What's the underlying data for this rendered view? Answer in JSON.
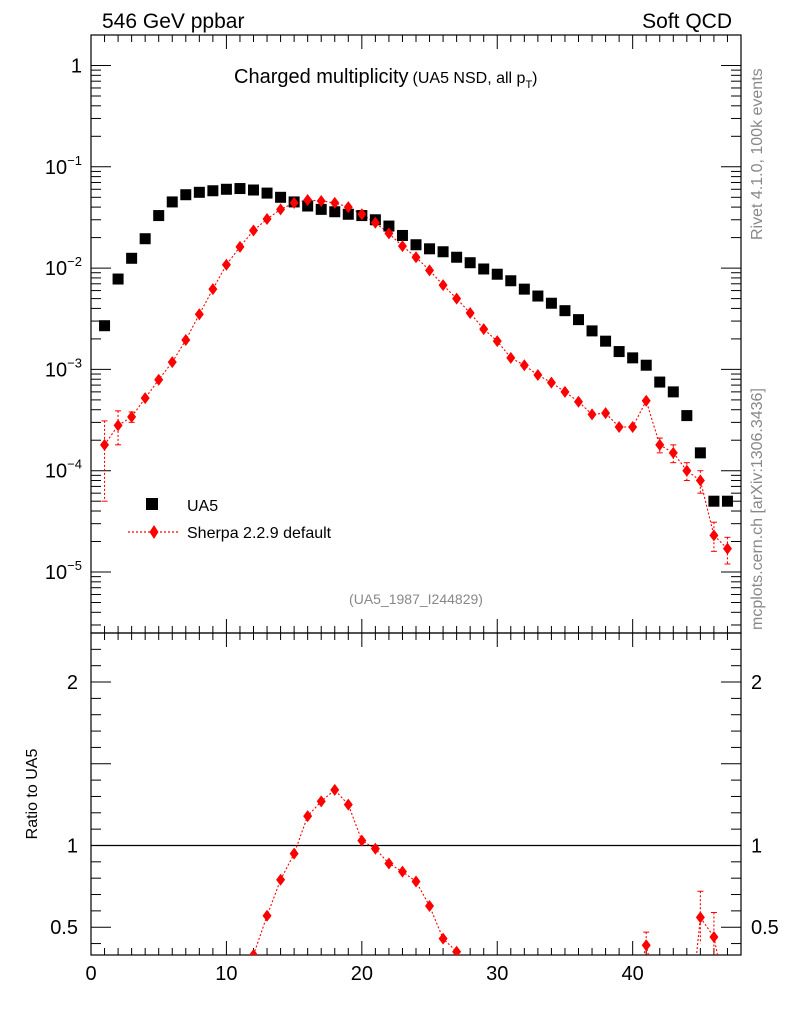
{
  "header": {
    "left": "546 GeV ppbar",
    "right": "Soft QCD"
  },
  "side": {
    "rivet": "Rivet 4.1.0,  100k events",
    "mcplots": "mcplots.cern.ch [arXiv:1306.3436]"
  },
  "chart_data": {
    "type": "scatter",
    "title": "Charged multiplicity",
    "title_sub": "(UA5 NSD, all p",
    "title_sub_subscript": "T",
    "title_sub_close": ")",
    "analysis_id": "(UA5_1987_I244829)",
    "xlabel": "",
    "ylabel_ratio": "Ratio to UA5",
    "xlim": [
      0,
      48
    ],
    "ylim_log": [
      2.5e-06,
      2.0
    ],
    "ratio_ylim": [
      0.33,
      2.3
    ],
    "x_ticks": [
      0,
      10,
      20,
      30,
      40
    ],
    "x_tick_labels": [
      "0",
      "10",
      "20",
      "30",
      "40"
    ],
    "y_ticks": [
      1e-05,
      0.0001,
      0.001,
      0.01,
      0.1,
      1
    ],
    "y_tick_labels": [
      {
        "base": "10",
        "exp": "−5"
      },
      {
        "base": "10",
        "exp": "−4"
      },
      {
        "base": "10",
        "exp": "−3"
      },
      {
        "base": "10",
        "exp": "−2"
      },
      {
        "base": "10",
        "exp": "−1"
      },
      {
        "base": "1",
        "exp": ""
      }
    ],
    "ratio_ticks": [
      0.5,
      1,
      2
    ],
    "ratio_tick_labels": [
      "0.5",
      "1",
      "2"
    ],
    "legend": {
      "position": "lower-left",
      "entries": [
        "UA5",
        "Sherpa 2.2.9 default"
      ]
    },
    "series": [
      {
        "name": "UA5",
        "color": "#000000",
        "marker": "square",
        "x": [
          1,
          2,
          3,
          4,
          5,
          6,
          7,
          8,
          9,
          10,
          11,
          12,
          13,
          14,
          15,
          16,
          17,
          18,
          19,
          20,
          21,
          22,
          23,
          24,
          25,
          26,
          27,
          28,
          29,
          30,
          31,
          32,
          33,
          34,
          35,
          36,
          37,
          38,
          39,
          40,
          41,
          42,
          43,
          44,
          45,
          46,
          47
        ],
        "y": [
          0.0027,
          0.0078,
          0.0125,
          0.0195,
          0.033,
          0.045,
          0.053,
          0.056,
          0.058,
          0.06,
          0.061,
          0.059,
          0.055,
          0.05,
          0.045,
          0.041,
          0.038,
          0.036,
          0.034,
          0.033,
          0.03,
          0.026,
          0.021,
          0.017,
          0.0155,
          0.0145,
          0.0128,
          0.0113,
          0.0098,
          0.0087,
          0.0075,
          0.0062,
          0.0053,
          0.0045,
          0.0038,
          0.0031,
          0.0024,
          0.0019,
          0.0015,
          0.0013,
          0.0011,
          0.00075,
          0.0006,
          0.00035,
          0.00015,
          5e-05,
          5e-05
        ]
      },
      {
        "name": "Sherpa 2.2.9 default",
        "color": "#ff0000",
        "marker": "diamond",
        "x": [
          1,
          2,
          3,
          4,
          5,
          6,
          7,
          8,
          9,
          10,
          11,
          12,
          13,
          14,
          15,
          16,
          17,
          18,
          19,
          20,
          21,
          22,
          23,
          24,
          25,
          26,
          27,
          28,
          29,
          30,
          31,
          32,
          33,
          34,
          35,
          36,
          37,
          38,
          39,
          40,
          41,
          42,
          43,
          44,
          45,
          46,
          47
        ],
        "y": [
          0.00018,
          0.00028,
          0.00034,
          0.00052,
          0.00079,
          0.00118,
          0.00195,
          0.0035,
          0.0062,
          0.0108,
          0.0162,
          0.0235,
          0.0305,
          0.038,
          0.044,
          0.047,
          0.046,
          0.044,
          0.04,
          0.034,
          0.028,
          0.022,
          0.0165,
          0.0128,
          0.0095,
          0.0068,
          0.005,
          0.0036,
          0.0025,
          0.0019,
          0.0013,
          0.0011,
          0.00088,
          0.00074,
          0.0006,
          0.00048,
          0.00036,
          0.00037,
          0.00027,
          0.00027,
          0.00049,
          0.00018,
          0.00015,
          0.0001,
          8e-05,
          2.3e-05,
          1.7e-05
        ],
        "y_err_low": [
          0.00013,
          0.0001,
          4e-05,
          0,
          0,
          0,
          0,
          0,
          0,
          0,
          0,
          0,
          0,
          0,
          0,
          0,
          0,
          0,
          0,
          0,
          0,
          0,
          0,
          0,
          0,
          0,
          0,
          0,
          0,
          0,
          0,
          0,
          0,
          0,
          0,
          0,
          0,
          0,
          0,
          0,
          0,
          3e-05,
          3e-05,
          2e-05,
          2e-05,
          7e-06,
          5e-06
        ],
        "y_err_high": [
          0.00013,
          0.00011,
          4e-05,
          0,
          0,
          0,
          0,
          0,
          0,
          0,
          0,
          0,
          0,
          0,
          0,
          0,
          0,
          0,
          0,
          0,
          0,
          0,
          0,
          0,
          0,
          0,
          0,
          0,
          0,
          0,
          0,
          0,
          0,
          0,
          0,
          0,
          0,
          0,
          0,
          0,
          0,
          3e-05,
          3e-05,
          2e-05,
          2e-05,
          8e-06,
          5e-06
        ]
      }
    ],
    "ratio": {
      "name": "Sherpa 2.2.9 default / UA5",
      "x": [
        12,
        13,
        14,
        15,
        16,
        17,
        18,
        19,
        20,
        21,
        22,
        23,
        24,
        25,
        26,
        27,
        41,
        45,
        46
      ],
      "y": [
        0.33,
        0.57,
        0.79,
        0.95,
        1.18,
        1.27,
        1.34,
        1.25,
        1.03,
        0.98,
        0.89,
        0.84,
        0.78,
        0.63,
        0.43,
        0.35,
        0.39,
        0.56,
        0.44
      ],
      "y_err": [
        0,
        0,
        0,
        0,
        0,
        0,
        0,
        0,
        0,
        0,
        0,
        0,
        0,
        0,
        0,
        0,
        0.08,
        0.16,
        0.15
      ]
    }
  }
}
